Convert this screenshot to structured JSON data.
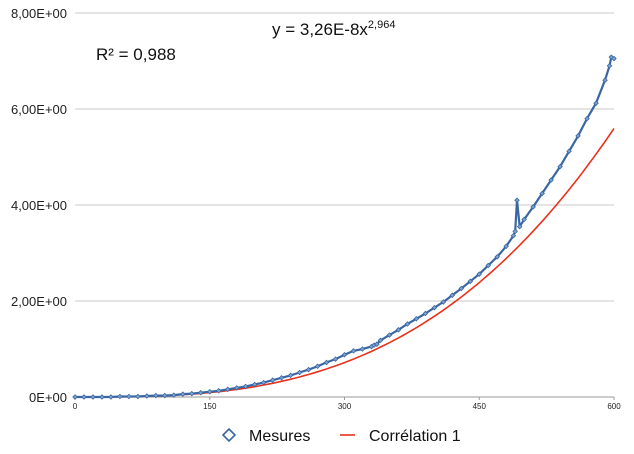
{
  "chart_data": {
    "type": "scatter",
    "title": "",
    "xlabel": "",
    "ylabel": "",
    "xlim": [
      0,
      600
    ],
    "ylim": [
      0,
      8
    ],
    "x_ticks": [
      0,
      150,
      300,
      450,
      600
    ],
    "x_tick_labels": [
      "0",
      "150",
      "300",
      "450",
      "600"
    ],
    "y_ticks": [
      0,
      2,
      4,
      6,
      8
    ],
    "y_tick_labels": [
      "0E+00",
      "2,00E+00",
      "4,00E+00",
      "6,00E+00",
      "8,00E+00"
    ],
    "grid": "horizontal",
    "legend_position": "bottom",
    "annotations": {
      "equation_base": "y = 3,26E-8x",
      "equation_exponent": "2,964",
      "r_squared": "R² = 0,988"
    },
    "series": [
      {
        "name": "Mesures",
        "kind": "markers",
        "color": "#3a67a3",
        "marker": "diamond",
        "x": [
          0,
          10,
          20,
          30,
          40,
          50,
          60,
          70,
          80,
          90,
          100,
          110,
          120,
          130,
          140,
          150,
          160,
          170,
          180,
          190,
          200,
          210,
          220,
          230,
          240,
          250,
          260,
          270,
          280,
          290,
          300,
          310,
          320,
          330,
          333,
          336,
          340,
          350,
          360,
          370,
          380,
          390,
          400,
          410,
          420,
          430,
          440,
          450,
          460,
          470,
          480,
          488,
          490,
          492,
          495,
          500,
          510,
          520,
          530,
          540,
          550,
          560,
          570,
          580,
          590,
          595,
          597,
          600
        ],
        "y": [
          0.0,
          0.0,
          0.0,
          0.0,
          0.0,
          0.01,
          0.01,
          0.01,
          0.02,
          0.03,
          0.03,
          0.04,
          0.06,
          0.07,
          0.09,
          0.11,
          0.13,
          0.16,
          0.19,
          0.22,
          0.26,
          0.3,
          0.35,
          0.4,
          0.45,
          0.51,
          0.57,
          0.64,
          0.72,
          0.79,
          0.88,
          0.96,
          1.0,
          1.05,
          1.08,
          1.1,
          1.18,
          1.29,
          1.4,
          1.52,
          1.63,
          1.74,
          1.86,
          1.98,
          2.12,
          2.26,
          2.41,
          2.56,
          2.74,
          2.92,
          3.14,
          3.36,
          3.45,
          4.1,
          3.55,
          3.7,
          3.96,
          4.24,
          4.52,
          4.8,
          5.12,
          5.44,
          5.8,
          6.12,
          6.6,
          6.9,
          7.08,
          7.05
        ]
      },
      {
        "name": "Corrélation 1",
        "kind": "line",
        "color": "#e8321c",
        "fit": {
          "a": 3.26e-08,
          "b": 2.964
        }
      }
    ]
  }
}
